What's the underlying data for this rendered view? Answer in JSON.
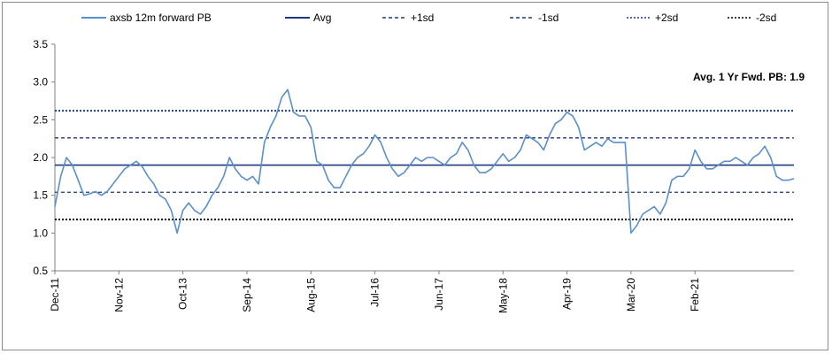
{
  "chart_data": {
    "type": "line",
    "title": "",
    "xlabel": "",
    "ylabel": "",
    "ylim": [
      0.5,
      3.5
    ],
    "y_ticks": [
      "0.5",
      "1.0",
      "1.5",
      "2.0",
      "2.5",
      "3.0",
      "3.5"
    ],
    "x_tick_labels": [
      "Dec-11",
      "Nov-12",
      "Oct-13",
      "Sep-14",
      "Aug-15",
      "Jul-16",
      "Jun-17",
      "May-18",
      "Apr-19",
      "Mar-20",
      "Feb-21"
    ],
    "x_range": [
      "2011-12",
      "2022-07"
    ],
    "grid": false,
    "legend_position": "top",
    "annotation": "Avg. 1 Yr Fwd. PB: 1.9",
    "series": [
      {
        "name": "axsb  12m forward PB",
        "color": "#5b8fcb",
        "style": "solid",
        "x": [
          "2011-12",
          "2012-01",
          "2012-02",
          "2012-03",
          "2012-04",
          "2012-05",
          "2012-06",
          "2012-07",
          "2012-08",
          "2012-09",
          "2012-10",
          "2012-11",
          "2012-12",
          "2013-01",
          "2013-02",
          "2013-03",
          "2013-04",
          "2013-05",
          "2013-06",
          "2013-07",
          "2013-08",
          "2013-09",
          "2013-10",
          "2013-11",
          "2013-12",
          "2014-01",
          "2014-02",
          "2014-03",
          "2014-04",
          "2014-05",
          "2014-06",
          "2014-07",
          "2014-08",
          "2014-09",
          "2014-10",
          "2014-11",
          "2014-12",
          "2015-01",
          "2015-02",
          "2015-03",
          "2015-04",
          "2015-05",
          "2015-06",
          "2015-07",
          "2015-08",
          "2015-09",
          "2015-10",
          "2015-11",
          "2015-12",
          "2016-01",
          "2016-02",
          "2016-03",
          "2016-04",
          "2016-05",
          "2016-06",
          "2016-07",
          "2016-08",
          "2016-09",
          "2016-10",
          "2016-11",
          "2016-12",
          "2017-01",
          "2017-02",
          "2017-03",
          "2017-04",
          "2017-05",
          "2017-06",
          "2017-07",
          "2017-08",
          "2017-09",
          "2017-10",
          "2017-11",
          "2017-12",
          "2018-01",
          "2018-02",
          "2018-03",
          "2018-04",
          "2018-05",
          "2018-06",
          "2018-07",
          "2018-08",
          "2018-09",
          "2018-10",
          "2018-11",
          "2018-12",
          "2019-01",
          "2019-02",
          "2019-03",
          "2019-04",
          "2019-05",
          "2019-06",
          "2019-07",
          "2019-08",
          "2019-09",
          "2019-10",
          "2019-11",
          "2019-12",
          "2020-01",
          "2020-02",
          "2020-03",
          "2020-04",
          "2020-05",
          "2020-06",
          "2020-07",
          "2020-08",
          "2020-09",
          "2020-10",
          "2020-11",
          "2020-12",
          "2021-01",
          "2021-02",
          "2021-03",
          "2021-04",
          "2021-05",
          "2021-06",
          "2021-07",
          "2021-08",
          "2021-09",
          "2021-10",
          "2021-11",
          "2021-12",
          "2022-01",
          "2022-02",
          "2022-03",
          "2022-04",
          "2022-05",
          "2022-06",
          "2022-07"
        ],
        "values": [
          1.35,
          1.75,
          2.0,
          1.9,
          1.7,
          1.5,
          1.52,
          1.55,
          1.5,
          1.55,
          1.65,
          1.75,
          1.85,
          1.9,
          1.95,
          1.88,
          1.75,
          1.65,
          1.5,
          1.45,
          1.3,
          1.0,
          1.3,
          1.4,
          1.3,
          1.25,
          1.35,
          1.5,
          1.6,
          1.75,
          2.0,
          1.85,
          1.75,
          1.7,
          1.75,
          1.65,
          2.2,
          2.4,
          2.55,
          2.8,
          2.9,
          2.6,
          2.55,
          2.55,
          2.4,
          1.95,
          1.9,
          1.7,
          1.6,
          1.6,
          1.75,
          1.9,
          2.0,
          2.05,
          2.15,
          2.3,
          2.2,
          2.0,
          1.85,
          1.75,
          1.8,
          1.9,
          2.0,
          1.95,
          2.0,
          2.0,
          1.95,
          1.9,
          2.0,
          2.05,
          2.2,
          2.1,
          1.9,
          1.8,
          1.8,
          1.85,
          1.95,
          2.05,
          1.95,
          2.0,
          2.1,
          2.3,
          2.25,
          2.2,
          2.1,
          2.3,
          2.45,
          2.5,
          2.6,
          2.55,
          2.4,
          2.1,
          2.15,
          2.2,
          2.15,
          2.25,
          2.2,
          2.2,
          2.2,
          1.0,
          1.1,
          1.25,
          1.3,
          1.35,
          1.25,
          1.4,
          1.7,
          1.75,
          1.75,
          1.85,
          2.1,
          1.95,
          1.85,
          1.85,
          1.9,
          1.95,
          1.95,
          2.0,
          1.95,
          1.9,
          2.0,
          2.05,
          2.15,
          2.0,
          1.75,
          1.7,
          1.7,
          1.72
        ]
      },
      {
        "name": "Avg",
        "color": "#1f3a7a",
        "style": "solid",
        "value": 1.9
      },
      {
        "name": "+1sd",
        "color": "#1f3a7a",
        "style": "dashed",
        "value": 2.26
      },
      {
        "name": "-1sd",
        "color": "#1f3a7a",
        "style": "dashed",
        "value": 1.54
      },
      {
        "name": "+2sd",
        "color": "#1f3a7a",
        "style": "dotted",
        "value": 2.62
      },
      {
        "name": "-2sd",
        "color": "#000000",
        "style": "dotted",
        "value": 1.18
      }
    ]
  }
}
